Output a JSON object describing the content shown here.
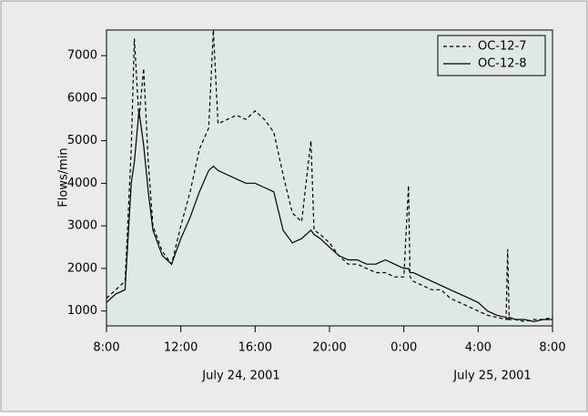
{
  "chart_data": {
    "type": "line",
    "y_label": "Flows/min",
    "date_labels": [
      "July 24, 2001",
      "July 25, 2001"
    ],
    "x": [
      "2001-07-24 08:00",
      "2001-07-24 08:30",
      "2001-07-24 09:00",
      "2001-07-24 09:20",
      "2001-07-24 09:30",
      "2001-07-24 09:45",
      "2001-07-24 10:00",
      "2001-07-24 10:15",
      "2001-07-24 10:30",
      "2001-07-24 11:00",
      "2001-07-24 11:30",
      "2001-07-24 12:00",
      "2001-07-24 12:30",
      "2001-07-24 13:00",
      "2001-07-24 13:30",
      "2001-07-24 13:45",
      "2001-07-24 14:00",
      "2001-07-24 14:30",
      "2001-07-24 15:00",
      "2001-07-24 15:30",
      "2001-07-24 16:00",
      "2001-07-24 16:30",
      "2001-07-24 17:00",
      "2001-07-24 17:30",
      "2001-07-24 18:00",
      "2001-07-24 18:30",
      "2001-07-24 19:00",
      "2001-07-24 19:10",
      "2001-07-24 19:30",
      "2001-07-24 20:00",
      "2001-07-24 20:30",
      "2001-07-24 21:00",
      "2001-07-24 21:30",
      "2001-07-24 22:00",
      "2001-07-24 22:30",
      "2001-07-24 23:00",
      "2001-07-24 23:30",
      "2001-07-25 00:00",
      "2001-07-25 00:15",
      "2001-07-25 00:20",
      "2001-07-25 00:30",
      "2001-07-25 01:00",
      "2001-07-25 01:30",
      "2001-07-25 02:00",
      "2001-07-25 02:30",
      "2001-07-25 03:00",
      "2001-07-25 03:30",
      "2001-07-25 04:00",
      "2001-07-25 04:30",
      "2001-07-25 05:00",
      "2001-07-25 05:30",
      "2001-07-25 05:35",
      "2001-07-25 05:40",
      "2001-07-25 06:00",
      "2001-07-25 06:30",
      "2001-07-25 07:00",
      "2001-07-25 07:30",
      "2001-07-25 08:00"
    ],
    "series": [
      {
        "name": "OC-12-7",
        "color": "#000000",
        "dash": true,
        "values": [
          1300,
          1500,
          1700,
          4800,
          7400,
          5500,
          6700,
          4500,
          3000,
          2400,
          2100,
          3000,
          3800,
          4800,
          5300,
          7600,
          5400,
          5500,
          5600,
          5500,
          5700,
          5500,
          5200,
          4200,
          3300,
          3100,
          5000,
          2900,
          2800,
          2600,
          2300,
          2100,
          2100,
          2000,
          1900,
          1900,
          1800,
          1800,
          3950,
          1800,
          1700,
          1600,
          1500,
          1500,
          1300,
          1200,
          1100,
          1000,
          900,
          850,
          800,
          2450,
          800,
          800,
          750,
          800,
          800,
          850
        ]
      },
      {
        "name": "OC-12-8",
        "color": "#000000",
        "dash": false,
        "values": [
          1200,
          1400,
          1500,
          4000,
          4500,
          5700,
          4900,
          3800,
          2900,
          2300,
          2100,
          2700,
          3200,
          3800,
          4300,
          4400,
          4300,
          4200,
          4100,
          4000,
          4000,
          3900,
          3800,
          2900,
          2600,
          2700,
          2900,
          2800,
          2700,
          2500,
          2300,
          2200,
          2200,
          2100,
          2100,
          2200,
          2100,
          2000,
          2000,
          1900,
          1900,
          1800,
          1700,
          1600,
          1500,
          1400,
          1300,
          1200,
          1000,
          900,
          850,
          800,
          850,
          800,
          800,
          750,
          800,
          800
        ]
      }
    ],
    "xlim": [
      "2001-07-24 08:00",
      "2001-07-25 08:00"
    ],
    "xticks": [
      {
        "value": "2001-07-24 08:00",
        "label": "8:00"
      },
      {
        "value": "2001-07-24 12:00",
        "label": "12:00"
      },
      {
        "value": "2001-07-24 16:00",
        "label": "16:00"
      },
      {
        "value": "2001-07-24 20:00",
        "label": "20:00"
      },
      {
        "value": "2001-07-25 00:00",
        "label": "0:00"
      },
      {
        "value": "2001-07-25 04:00",
        "label": "4:00"
      },
      {
        "value": "2001-07-25 08:00",
        "label": "8:00"
      }
    ],
    "ylim": [
      650,
      7600
    ],
    "yticks": [
      1000,
      2000,
      3000,
      4000,
      5000,
      6000,
      7000
    ],
    "legend": "top-right",
    "plot_background": "#dfe8e6"
  }
}
